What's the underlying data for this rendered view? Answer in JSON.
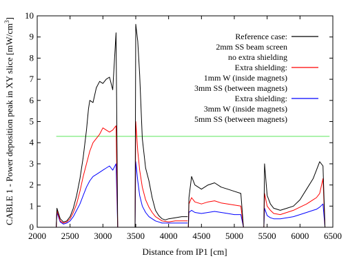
{
  "chart_data": {
    "type": "line",
    "title": "",
    "xlabel": "Distance from IP1 [cm]",
    "ylabel": "CABLE 1 - Power deposition peak in XY slice [mW/cm",
    "ylabel_superscript": "3",
    "ylabel_suffix": "]",
    "xlim": [
      2000,
      6500
    ],
    "ylim": [
      0,
      10
    ],
    "xticks": [
      "2000",
      "2500",
      "3000",
      "3500",
      "4000",
      "4500",
      "5000",
      "5500",
      "6000",
      "6500"
    ],
    "yticks": [
      "0",
      "1",
      "2",
      "3",
      "4",
      "5",
      "6",
      "7",
      "8",
      "9",
      "10"
    ],
    "grid": false,
    "legend_position": "top-right",
    "threshold": {
      "y": 4.3,
      "color": "#90ee90"
    },
    "series": [
      {
        "name": "Reference case: 2mm SS beam screen no extra shielding",
        "legend_lines": [
          "Reference case:",
          "2mm SS beam screen",
          "no extra shielding"
        ],
        "color": "#000000",
        "segments": [
          {
            "x": [
              2290,
              2300,
              2350,
              2400,
              2450,
              2500,
              2550,
              2600,
              2650,
              2700,
              2750,
              2780,
              2800,
              2850,
              2900,
              2950,
              3000,
              3050,
              3100,
              3150,
              3200,
              3225
            ],
            "y": [
              0.0,
              0.9,
              0.4,
              0.25,
              0.3,
              0.5,
              0.9,
              1.5,
              2.3,
              3.3,
              4.6,
              5.6,
              6.0,
              5.9,
              6.6,
              6.9,
              6.8,
              7.0,
              7.1,
              6.5,
              9.2,
              0.0
            ]
          },
          {
            "x": [
              3490,
              3500,
              3530,
              3560,
              3600,
              3650,
              3700,
              3750,
              3800,
              3850,
              3900,
              3950,
              4000,
              4100,
              4200,
              4290
            ],
            "y": [
              0.0,
              9.6,
              8.8,
              7.2,
              4.2,
              2.8,
              2.2,
              1.4,
              0.8,
              0.55,
              0.4,
              0.35,
              0.4,
              0.45,
              0.5,
              0.5
            ]
          },
          {
            "x": [
              4300,
              4310,
              4350,
              4400,
              4500,
              4600,
              4700,
              4800,
              4900,
              5000,
              5100,
              5140
            ],
            "y": [
              0.0,
              1.4,
              2.4,
              2.0,
              1.8,
              2.0,
              2.1,
              1.9,
              1.8,
              1.7,
              1.6,
              0.0
            ]
          },
          {
            "x": [
              5450,
              5460,
              5500,
              5550,
              5600,
              5700,
              5800,
              5900,
              6000,
              6100,
              6200,
              6250,
              6300,
              6350,
              6380
            ],
            "y": [
              0.0,
              3.0,
              1.5,
              1.1,
              0.9,
              0.8,
              0.9,
              1.0,
              1.3,
              1.8,
              2.3,
              2.7,
              3.1,
              2.9,
              0.0
            ]
          }
        ]
      },
      {
        "name": "Extra shielding: 1mm W (inside magnets) 3mm SS (between magnets)",
        "legend_lines": [
          "Extra shielding:",
          "1mm W (inside magnets)",
          "3mm SS (between magnets)"
        ],
        "color": "#ff0000",
        "segments": [
          {
            "x": [
              2290,
              2300,
              2350,
              2400,
              2450,
              2500,
              2550,
              2600,
              2650,
              2700,
              2750,
              2800,
              2850,
              2900,
              2950,
              3000,
              3050,
              3100,
              3150,
              3200,
              3225
            ],
            "y": [
              0.0,
              0.8,
              0.3,
              0.2,
              0.25,
              0.4,
              0.7,
              1.1,
              1.7,
              2.4,
              3.0,
              3.6,
              4.0,
              4.2,
              4.4,
              4.7,
              4.6,
              4.5,
              4.6,
              4.8,
              0.0
            ]
          },
          {
            "x": [
              3490,
              3500,
              3530,
              3560,
              3600,
              3650,
              3700,
              3750,
              3800,
              3850,
              3900,
              4000,
              4100,
              4200,
              4290
            ],
            "y": [
              0.0,
              5.0,
              3.6,
              2.7,
              1.9,
              1.3,
              0.95,
              0.7,
              0.5,
              0.4,
              0.3,
              0.25,
              0.3,
              0.3,
              0.3
            ]
          },
          {
            "x": [
              4300,
              4310,
              4350,
              4400,
              4500,
              4600,
              4700,
              4800,
              4900,
              5000,
              5100,
              5140
            ],
            "y": [
              0.0,
              1.1,
              1.4,
              1.2,
              1.1,
              1.2,
              1.25,
              1.15,
              1.1,
              1.05,
              1.0,
              0.0
            ]
          },
          {
            "x": [
              5450,
              5460,
              5500,
              5550,
              5600,
              5700,
              5800,
              5900,
              6000,
              6100,
              6200,
              6250,
              6300,
              6350,
              6380
            ],
            "y": [
              0.0,
              1.6,
              1.0,
              0.8,
              0.65,
              0.6,
              0.7,
              0.8,
              0.95,
              1.1,
              1.3,
              1.4,
              1.6,
              2.3,
              0.0
            ]
          }
        ]
      },
      {
        "name": "Extra shielding: 3mm W (inside magnets) 5mm SS (between magnets)",
        "legend_lines": [
          "Extra shielding:",
          "3mm W (inside magnets)",
          "5mm SS (between magnets)"
        ],
        "color": "#0000ff",
        "segments": [
          {
            "x": [
              2290,
              2300,
              2350,
              2400,
              2450,
              2500,
              2550,
              2600,
              2650,
              2700,
              2750,
              2800,
              2850,
              2900,
              2950,
              3000,
              3050,
              3100,
              3150,
              3200,
              3225
            ],
            "y": [
              0.0,
              0.7,
              0.25,
              0.15,
              0.2,
              0.3,
              0.5,
              0.8,
              1.1,
              1.5,
              1.9,
              2.2,
              2.4,
              2.5,
              2.6,
              2.7,
              2.8,
              2.9,
              2.7,
              3.0,
              0.0
            ]
          },
          {
            "x": [
              3490,
              3500,
              3530,
              3560,
              3600,
              3650,
              3700,
              3750,
              3800,
              3850,
              3900,
              4000,
              4100,
              4200,
              4290
            ],
            "y": [
              0.0,
              3.1,
              2.2,
              1.5,
              1.0,
              0.7,
              0.5,
              0.4,
              0.3,
              0.25,
              0.2,
              0.2,
              0.2,
              0.2,
              0.2
            ]
          },
          {
            "x": [
              4300,
              4310,
              4350,
              4400,
              4500,
              4600,
              4700,
              4800,
              4900,
              5000,
              5100,
              5140
            ],
            "y": [
              0.0,
              0.7,
              0.8,
              0.7,
              0.65,
              0.7,
              0.75,
              0.7,
              0.65,
              0.6,
              0.6,
              0.0
            ]
          },
          {
            "x": [
              5450,
              5460,
              5500,
              5550,
              5600,
              5700,
              5800,
              5900,
              6000,
              6100,
              6200,
              6250,
              6300,
              6350,
              6380
            ],
            "y": [
              0.0,
              0.9,
              0.55,
              0.45,
              0.4,
              0.4,
              0.45,
              0.5,
              0.6,
              0.7,
              0.8,
              0.85,
              0.95,
              1.1,
              0.0
            ]
          }
        ]
      }
    ]
  }
}
